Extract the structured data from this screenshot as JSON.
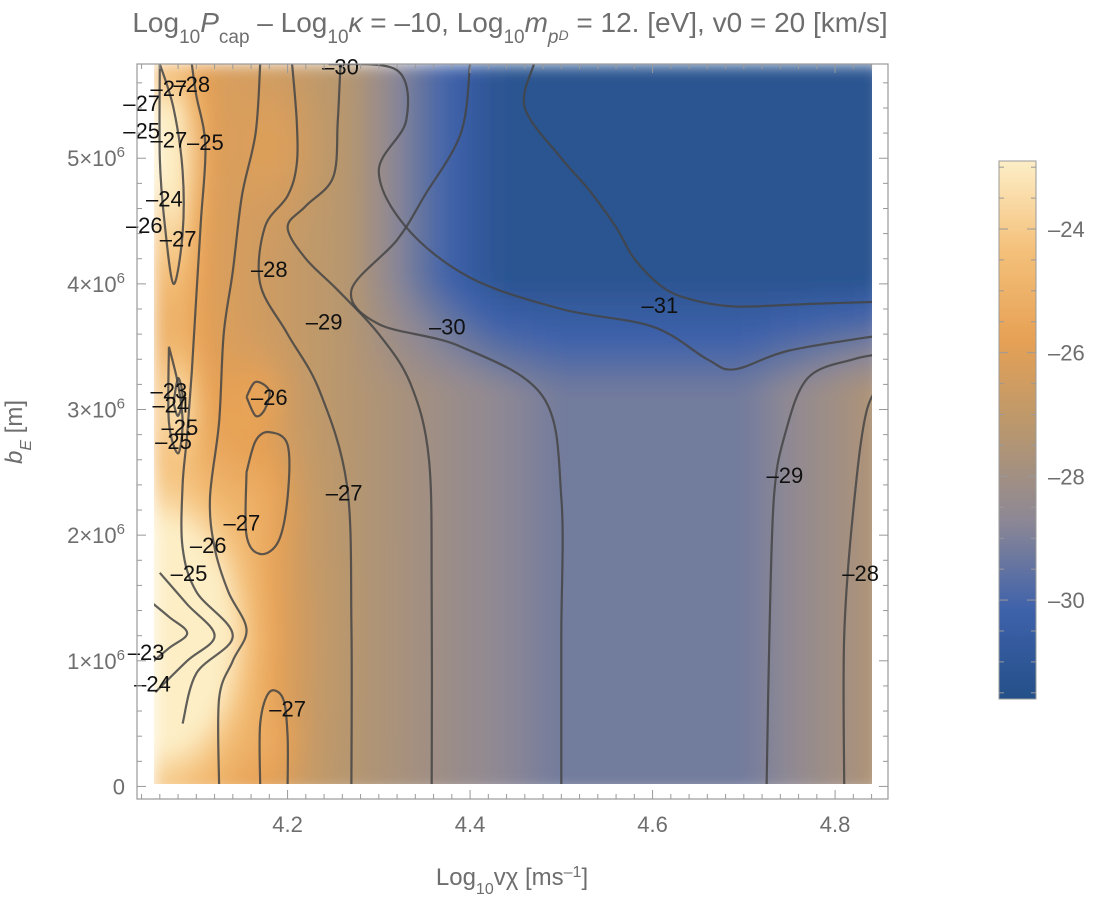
{
  "chart_data": {
    "type": "contour",
    "title": {
      "parts": [
        {
          "t": "Log"
        },
        {
          "t": "10",
          "sub": true
        },
        {
          "t": "P",
          "italic": true
        },
        {
          "t": "cap",
          "sub": true
        },
        {
          "t": " – Log"
        },
        {
          "t": "10",
          "sub": true
        },
        {
          "t": "κ",
          "italic": true
        },
        {
          "t": " = –10, Log"
        },
        {
          "t": "10",
          "sub": true
        },
        {
          "t": "m",
          "italic": true
        },
        {
          "t": "p",
          "sub": true,
          "italic": true
        },
        {
          "t": "D",
          "subsub": true,
          "italic": true
        },
        {
          "t": " = 12. [eV], v0 = 20 [km/s]"
        }
      ]
    },
    "xlabel": {
      "parts": [
        {
          "t": "Log"
        },
        {
          "t": "10",
          "sub": true
        },
        {
          "t": "vχ [ms"
        },
        {
          "t": "–1",
          "sup": true
        },
        {
          "t": "]"
        }
      ]
    },
    "ylabel": {
      "parts": [
        {
          "t": "b",
          "italic": true
        },
        {
          "t": "E",
          "sub": true,
          "italic": true
        },
        {
          "t": " [m]"
        }
      ]
    },
    "xlim": [
      4.035,
      4.858
    ],
    "ylim": [
      -100000,
      5750000
    ],
    "x_ticks": [
      {
        "value": 4.2,
        "label": "4.2"
      },
      {
        "value": 4.4,
        "label": "4.4"
      },
      {
        "value": 4.6,
        "label": "4.6"
      },
      {
        "value": 4.8,
        "label": "4.8"
      }
    ],
    "y_ticks": [
      {
        "value": 0,
        "label": "0"
      },
      {
        "value": 1000000,
        "label": "1×10",
        "exp": "6"
      },
      {
        "value": 2000000,
        "label": "2×10",
        "exp": "6"
      },
      {
        "value": 3000000,
        "label": "3×10",
        "exp": "6"
      },
      {
        "value": 4000000,
        "label": "4×10",
        "exp": "6"
      },
      {
        "value": 5000000,
        "label": "5×10",
        "exp": "6"
      }
    ],
    "colorbar": {
      "range": [
        -31.6,
        -22.9
      ],
      "ticks": [
        {
          "value": -24,
          "label": "–24"
        },
        {
          "value": -26,
          "label": "–26"
        },
        {
          "value": -28,
          "label": "–28"
        },
        {
          "value": -30,
          "label": "–30"
        }
      ],
      "colors": [
        "#245089",
        "#3f62ab",
        "#8d8895",
        "#b8976e",
        "#e6a155",
        "#f4c07a",
        "#fdeec6"
      ]
    },
    "contour_lines": [
      {
        "level": -31,
        "points": [
          [
            4.47,
            5750000.0
          ],
          [
            4.46,
            5400000.0
          ],
          [
            4.5,
            5000000.0
          ],
          [
            4.53,
            4750000.0
          ],
          [
            4.56,
            4450000.0
          ],
          [
            4.58,
            4200000.0
          ],
          [
            4.61,
            3980000.0
          ],
          [
            4.64,
            3880000.0
          ],
          [
            4.69,
            3820000.0
          ],
          [
            4.77,
            3840000.0
          ],
          [
            4.858,
            3860000.0
          ]
        ]
      },
      {
        "level": -30,
        "points": [
          [
            4.245,
            5750000.0
          ],
          [
            4.32,
            5700000.0
          ],
          [
            4.33,
            5300000.0
          ],
          [
            4.3,
            4900000.0
          ],
          [
            4.33,
            4450000.0
          ],
          [
            4.4,
            4050000.0
          ],
          [
            4.5,
            3800000.0
          ],
          [
            4.6,
            3660000.0
          ],
          [
            4.66,
            3400000.0
          ],
          [
            4.69,
            3320000.0
          ],
          [
            4.75,
            3470000.0
          ],
          [
            4.858,
            3600000.0
          ]
        ]
      },
      {
        "level": -29,
        "points": [
          [
            4.4,
            5750000.0
          ],
          [
            4.39,
            5200000.0
          ],
          [
            4.35,
            4700000.0
          ],
          [
            4.32,
            4350000.0
          ],
          [
            4.27,
            3950000.0
          ],
          [
            4.3,
            3680000.0
          ],
          [
            4.39,
            3500000.0
          ],
          [
            4.48,
            3100000.0
          ],
          [
            4.5,
            2300000.0
          ],
          [
            4.5,
            1200000.0
          ],
          [
            4.5,
            0
          ]
        ]
      },
      {
        "level": -29,
        "points": [
          [
            4.725,
            0
          ],
          [
            4.728,
            1200000.0
          ],
          [
            4.733,
            2300000.0
          ],
          [
            4.745,
            2800000.0
          ],
          [
            4.77,
            3250000.0
          ],
          [
            4.82,
            3400000.0
          ],
          [
            4.858,
            3450000.0
          ]
        ]
      },
      {
        "level": -28,
        "points": [
          [
            4.81,
            0
          ],
          [
            4.81,
            1200000.0
          ],
          [
            4.82,
            2200000.0
          ],
          [
            4.835,
            3000000.0
          ],
          [
            4.858,
            3250000.0
          ]
        ]
      },
      {
        "level": -28,
        "points": [
          [
            4.258,
            5750000.0
          ],
          [
            4.255,
            5300000.0
          ],
          [
            4.25,
            4850000.0
          ],
          [
            4.22,
            4620000.0
          ],
          [
            4.2,
            4450000.0
          ],
          [
            4.22,
            4200000.0
          ],
          [
            4.255,
            3950000.0
          ],
          [
            4.3,
            3600000.0
          ],
          [
            4.335,
            3200000.0
          ],
          [
            4.355,
            2600000.0
          ],
          [
            4.358,
            1500000.0
          ],
          [
            4.358,
            0
          ]
        ]
      },
      {
        "level": -27,
        "points": [
          [
            4.205,
            5750000.0
          ],
          [
            4.21,
            5300000.0
          ],
          [
            4.21,
            4950000.0
          ],
          [
            4.2,
            4700000.0
          ],
          [
            4.175,
            4450000.0
          ],
          [
            4.17,
            4000000.0
          ],
          [
            4.2,
            3600000.0
          ],
          [
            4.235,
            3150000.0
          ],
          [
            4.265,
            2400000.0
          ],
          [
            4.27,
            1300000.0
          ],
          [
            4.27,
            0
          ]
        ]
      },
      {
        "level": -27,
        "points": [
          [
            4.155,
            2500000.0
          ],
          [
            4.165,
            2750000.0
          ],
          [
            4.18,
            2820000.0
          ],
          [
            4.2,
            2720000.0
          ],
          [
            4.2,
            2300000.0
          ],
          [
            4.19,
            1950000.0
          ],
          [
            4.17,
            1850000.0
          ],
          [
            4.155,
            2000000.0
          ],
          [
            4.155,
            2500000.0
          ]
        ]
      },
      {
        "level": -27,
        "points": [
          [
            4.17,
            0
          ],
          [
            4.17,
            500000.0
          ],
          [
            4.18,
            750000.0
          ],
          [
            4.195,
            700000.0
          ],
          [
            4.2,
            400000.0
          ],
          [
            4.2,
            0
          ]
        ]
      },
      {
        "level": -26,
        "points": [
          [
            4.125,
            0
          ],
          [
            4.125,
            700000.0
          ],
          [
            4.14,
            1000000.0
          ],
          [
            4.155,
            1250000.0
          ],
          [
            4.135,
            1550000.0
          ],
          [
            4.12,
            1900000.0
          ],
          [
            4.115,
            2300000.0
          ],
          [
            4.125,
            2900000.0
          ],
          [
            4.13,
            3600000.0
          ],
          [
            4.14,
            4100000.0
          ],
          [
            4.15,
            4700000.0
          ],
          [
            4.165,
            5200000.0
          ],
          [
            4.17,
            5750000.0
          ]
        ]
      },
      {
        "level": -26,
        "points": [
          [
            4.155,
            3100000.0
          ],
          [
            4.165,
            3220000.0
          ],
          [
            4.18,
            3150000.0
          ],
          [
            4.175,
            3000000.0
          ],
          [
            4.165,
            2950000.0
          ],
          [
            4.155,
            3100000.0
          ]
        ]
      },
      {
        "level": -25,
        "points": [
          [
            4.085,
            500000.0
          ],
          [
            4.1,
            900000.0
          ],
          [
            4.14,
            1200000.0
          ],
          [
            4.1,
            1550000.0
          ],
          [
            4.085,
            1900000.0
          ],
          [
            4.085,
            2400000.0
          ],
          [
            4.09,
            2800000.0
          ],
          [
            4.095,
            3300000.0
          ],
          [
            4.1,
            3900000.0
          ],
          [
            4.105,
            4500000.0
          ],
          [
            4.11,
            5100000.0
          ],
          [
            4.1,
            5500000.0
          ],
          [
            4.095,
            5750000.0
          ]
        ]
      },
      {
        "level": -24,
        "points": [
          [
            4.055,
            750000.0
          ],
          [
            4.09,
            1000000.0
          ],
          [
            4.12,
            1200000.0
          ],
          [
            4.09,
            1450000.0
          ],
          [
            4.06,
            1700000.0
          ]
        ]
      },
      {
        "level": -24,
        "points": [
          [
            4.07,
            3500000.0
          ],
          [
            4.08,
            3200000.0
          ],
          [
            4.085,
            2900000.0
          ],
          [
            4.08,
            2650000.0
          ],
          [
            4.07,
            2900000.0
          ],
          [
            4.07,
            3500000.0
          ]
        ]
      },
      {
        "level": -24,
        "points": [
          [
            4.06,
            5750000.0
          ],
          [
            4.075,
            5400000.0
          ],
          [
            4.085,
            4900000.0
          ],
          [
            4.085,
            4400000.0
          ],
          [
            4.075,
            4000000.0
          ],
          [
            4.065,
            4500000.0
          ],
          [
            4.06,
            5000000.0
          ],
          [
            4.06,
            5750000.0
          ]
        ]
      },
      {
        "level": -23,
        "points": [
          [
            4.045,
            950000.0
          ],
          [
            4.07,
            1100000.0
          ],
          [
            4.09,
            1220000.0
          ],
          [
            4.07,
            1350000.0
          ],
          [
            4.045,
            1500000.0
          ]
        ]
      },
      {
        "level": -23,
        "points": [
          [
            4.075,
            3050000.0
          ],
          [
            4.08,
            3250000.0
          ],
          [
            4.085,
            3100000.0
          ],
          [
            4.08,
            2950000.0
          ],
          [
            4.075,
            3050000.0
          ]
        ]
      }
    ],
    "hotspots": [
      {
        "x": 4.06,
        "y": 1200000.0,
        "v": 4.6,
        "s": [
          0.08,
          850000.0
        ]
      },
      {
        "x": 4.08,
        "y": 1200000.0,
        "v": 2.0,
        "s": [
          0.1,
          1400000.0
        ]
      },
      {
        "x": 4.08,
        "y": 3050000.0,
        "v": 2.2,
        "s": [
          0.022,
          420000.0
        ]
      },
      {
        "x": 4.075,
        "y": 4750000.0,
        "v": 2.5,
        "s": [
          0.024,
          900000.0
        ]
      },
      {
        "x": 4.068,
        "y": 5200000.0,
        "v": 1.6,
        "s": [
          0.03,
          500000.0
        ]
      },
      {
        "x": 4.175,
        "y": 2300000.0,
        "v": 0.7,
        "s": [
          0.035,
          450000.0
        ]
      },
      {
        "x": 4.17,
        "y": 3100000.0,
        "v": 0.7,
        "s": [
          0.03,
          300000.0
        ]
      },
      {
        "x": 4.185,
        "y": 300000.0,
        "v": 0.6,
        "s": [
          0.03,
          350000.0
        ]
      },
      {
        "x": 4.19,
        "y": 5100000.0,
        "v": 0.6,
        "s": [
          0.04,
          500000.0
        ]
      }
    ],
    "contour_labels": [
      {
        "x": 4.258,
        "y": 5730000.0,
        "text": "–30"
      },
      {
        "x": 4.095,
        "y": 5590000.0,
        "text": "–28"
      },
      {
        "x": 4.07,
        "y": 5560000.0,
        "text": "–27"
      },
      {
        "x": 4.04,
        "y": 5440000.0,
        "text": "–27"
      },
      {
        "x": 4.04,
        "y": 5220000.0,
        "text": "–25"
      },
      {
        "x": 4.07,
        "y": 5150000.0,
        "text": "–27"
      },
      {
        "x": 4.11,
        "y": 5130000.0,
        "text": "–25"
      },
      {
        "x": 4.065,
        "y": 4680000.0,
        "text": "–24"
      },
      {
        "x": 4.043,
        "y": 4470000.0,
        "text": "–26"
      },
      {
        "x": 4.08,
        "y": 4360000.0,
        "text": "–27"
      },
      {
        "x": 4.18,
        "y": 4120000.0,
        "text": "–28"
      },
      {
        "x": 4.24,
        "y": 3700000.0,
        "text": "–29"
      },
      {
        "x": 4.375,
        "y": 3660000.0,
        "text": "–30"
      },
      {
        "x": 4.608,
        "y": 3830000.0,
        "text": "–31"
      },
      {
        "x": 4.07,
        "y": 3150000.0,
        "text": "–23"
      },
      {
        "x": 4.18,
        "y": 3100000.0,
        "text": "–26"
      },
      {
        "x": 4.072,
        "y": 3040000.0,
        "text": "–24"
      },
      {
        "x": 4.082,
        "y": 2860000.0,
        "text": "–25"
      },
      {
        "x": 4.075,
        "y": 2750000.0,
        "text": "–25"
      },
      {
        "x": 4.745,
        "y": 2480000.0,
        "text": "–29"
      },
      {
        "x": 4.262,
        "y": 2340000.0,
        "text": "–27"
      },
      {
        "x": 4.15,
        "y": 2100000.0,
        "text": "–27"
      },
      {
        "x": 4.113,
        "y": 1920000.0,
        "text": "–26"
      },
      {
        "x": 4.092,
        "y": 1700000.0,
        "text": "–25"
      },
      {
        "x": 4.828,
        "y": 1700000.0,
        "text": "–28"
      },
      {
        "x": 4.045,
        "y": 1070000.0,
        "text": "–23"
      },
      {
        "x": 4.052,
        "y": 820000.0,
        "text": "–24"
      },
      {
        "x": 4.2,
        "y": 620000.0,
        "text": "–27"
      }
    ]
  }
}
